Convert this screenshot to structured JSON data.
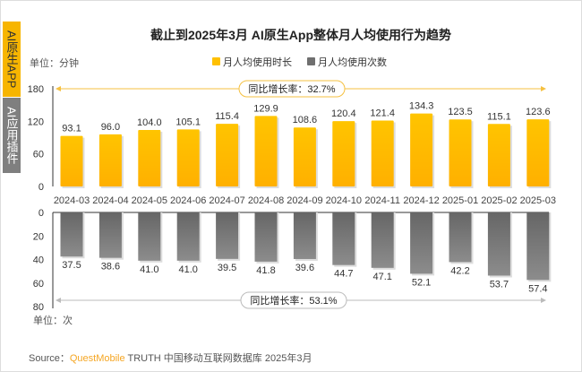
{
  "tabs": [
    "AI原生APP",
    "AI应用插件"
  ],
  "chart_data": [
    {
      "type": "bar",
      "title": "截止到2025年3月 AI原生App整体月人均使用行为趋势",
      "unit": "单位：分钟",
      "categories": [
        "2024-03",
        "2024-04",
        "2024-05",
        "2024-06",
        "2024-07",
        "2024-08",
        "2024-09",
        "2024-10",
        "2024-11",
        "2024-12",
        "2025-01",
        "2025-02",
        "2025-03"
      ],
      "series": [
        {
          "name": "月人均使用时长",
          "values": [
            93.1,
            96.0,
            104.0,
            105.1,
            115.4,
            129.9,
            108.6,
            120.4,
            121.4,
            134.3,
            123.5,
            115.1,
            123.6
          ],
          "color": "#ffc000"
        }
      ],
      "yticks": [
        0,
        60,
        120,
        180
      ],
      "ylim": [
        0,
        180
      ],
      "annotation": "同比增长率：32.7%"
    },
    {
      "type": "bar",
      "unit": "单位：次",
      "inverted": true,
      "series": [
        {
          "name": "月人均使用次数",
          "values": [
            37.5,
            38.6,
            41.0,
            41.0,
            39.5,
            41.8,
            39.6,
            44.7,
            47.1,
            52.1,
            42.2,
            53.7,
            57.4
          ],
          "color": "#6f6f6f"
        }
      ],
      "yticks": [
        0,
        20,
        40,
        60,
        80
      ],
      "ylim": [
        0,
        80
      ],
      "annotation": "同比增长率：53.1%"
    }
  ],
  "source": {
    "prefix": "Source：",
    "brand": "QuestMobile",
    "rest": "TRUTH 中国移动互联网数据库 2025年3月"
  }
}
